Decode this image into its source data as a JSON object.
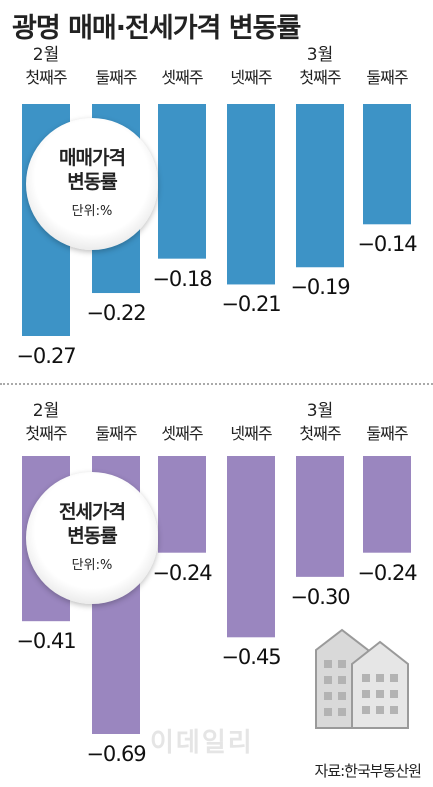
{
  "title": "광명 매매·전세가격 변동률",
  "source": "자료:한국부동산원",
  "watermark": "이데일리",
  "colors": {
    "sale": "#3d93c6",
    "jeonse": "#9a86bf"
  },
  "chart_data": [
    {
      "type": "bar",
      "badge_title_line1": "매매가격",
      "badge_title_line2": "변동률",
      "unit": "단위:%",
      "months": [
        {
          "label": "2월",
          "category_index": 0
        },
        {
          "label": "3월",
          "category_index": 4
        }
      ],
      "categories": [
        "첫째주",
        "둘째주",
        "셋째주",
        "넷째주",
        "첫째주",
        "둘째주"
      ],
      "values": [
        -0.27,
        -0.22,
        -0.18,
        -0.21,
        -0.19,
        -0.14
      ],
      "value_labels": [
        "−0.27",
        "−0.22",
        "−0.18",
        "−0.21",
        "−0.19",
        "−0.14"
      ],
      "ylim": [
        -0.27,
        0
      ]
    },
    {
      "type": "bar",
      "badge_title_line1": "전세가격",
      "badge_title_line2": "변동률",
      "unit": "단위:%",
      "months": [
        {
          "label": "2월",
          "category_index": 0
        },
        {
          "label": "3월",
          "category_index": 4
        }
      ],
      "categories": [
        "첫째주",
        "둘째주",
        "셋째주",
        "넷째주",
        "첫째주",
        "둘째주"
      ],
      "values": [
        -0.41,
        -0.69,
        -0.24,
        -0.45,
        -0.3,
        -0.24
      ],
      "value_labels": [
        "−0.41",
        "−0.69",
        "−0.24",
        "−0.45",
        "−0.30",
        "−0.24"
      ],
      "ylim": [
        -0.69,
        0
      ]
    }
  ]
}
